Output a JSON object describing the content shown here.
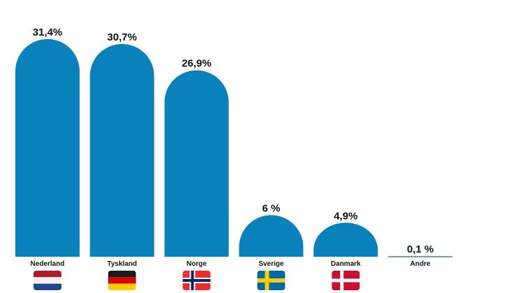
{
  "chart_data": {
    "type": "bar",
    "title": "",
    "xlabel": "",
    "ylabel": "",
    "ylim": [
      0,
      31.4
    ],
    "grid": false,
    "categories": [
      "Nederland",
      "Tyskland",
      "Norge",
      "Sverige",
      "Danmark",
      "Andre"
    ],
    "values": [
      31.4,
      30.7,
      26.9,
      6,
      4.9,
      0.1
    ],
    "data_labels": [
      "31,4%",
      "30,7%",
      "26,9%",
      "6 %",
      "4,9%",
      "0,1 %"
    ],
    "flags": [
      "netherlands-flag",
      "germany-flag",
      "norway-flag",
      "sweden-flag",
      "denmark-flag",
      null
    ],
    "bar_color": "#0981BB"
  }
}
